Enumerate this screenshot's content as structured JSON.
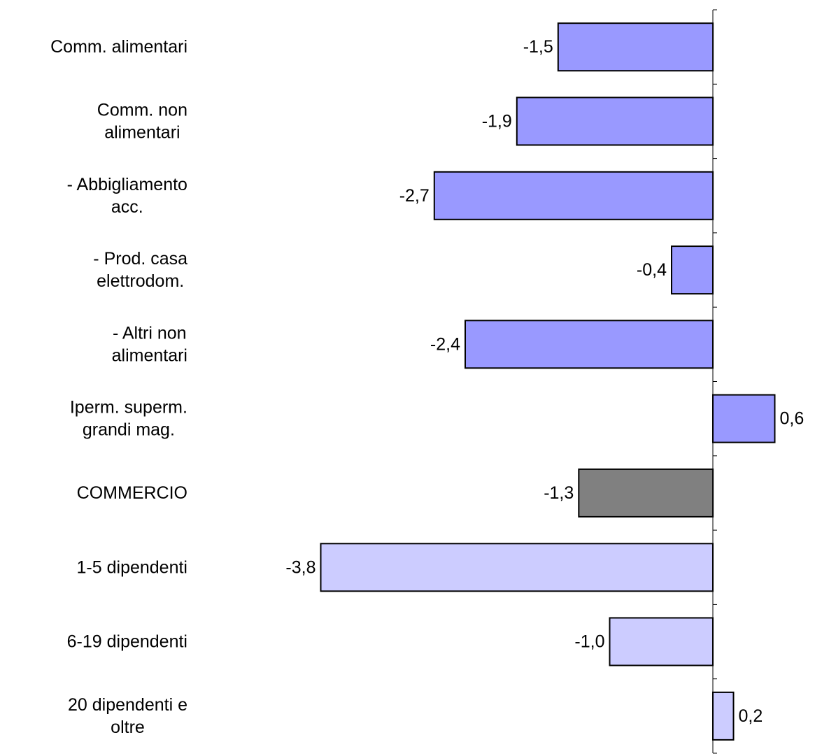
{
  "chart_data": {
    "type": "bar",
    "orientation": "horizontal",
    "title": "",
    "xlabel": "",
    "ylabel": "",
    "categories": [
      [
        "Comm. alimentari"
      ],
      [
        "Comm. non",
        "alimentari"
      ],
      [
        "- Abbigliamento",
        "acc."
      ],
      [
        "- Prod. casa",
        "elettrodom."
      ],
      [
        "- Altri  non",
        "alimentari"
      ],
      [
        "Iperm. superm.",
        "grandi mag."
      ],
      [
        "COMMERCIO"
      ],
      [
        "1-5 dipendenti"
      ],
      [
        "6-19 dipendenti"
      ],
      [
        "20 dipendenti e",
        "oltre"
      ]
    ],
    "values": [
      -1.5,
      -1.9,
      -2.7,
      -0.4,
      -2.4,
      0.6,
      -1.3,
      -3.8,
      -1.0,
      0.2
    ],
    "value_labels": [
      "-1,5",
      "-1,9",
      "-2,7",
      "-0,4",
      "-2,4",
      "0,6",
      "-1,3",
      "-3,8",
      "-1,0",
      "0,2"
    ],
    "bar_colors": [
      "#9999ff",
      "#9999ff",
      "#9999ff",
      "#9999ff",
      "#9999ff",
      "#9999ff",
      "#808080",
      "#ccccff",
      "#ccccff",
      "#ccccff"
    ],
    "xlim": [
      -3.8,
      0.6
    ],
    "grid": false,
    "legend": "none"
  }
}
